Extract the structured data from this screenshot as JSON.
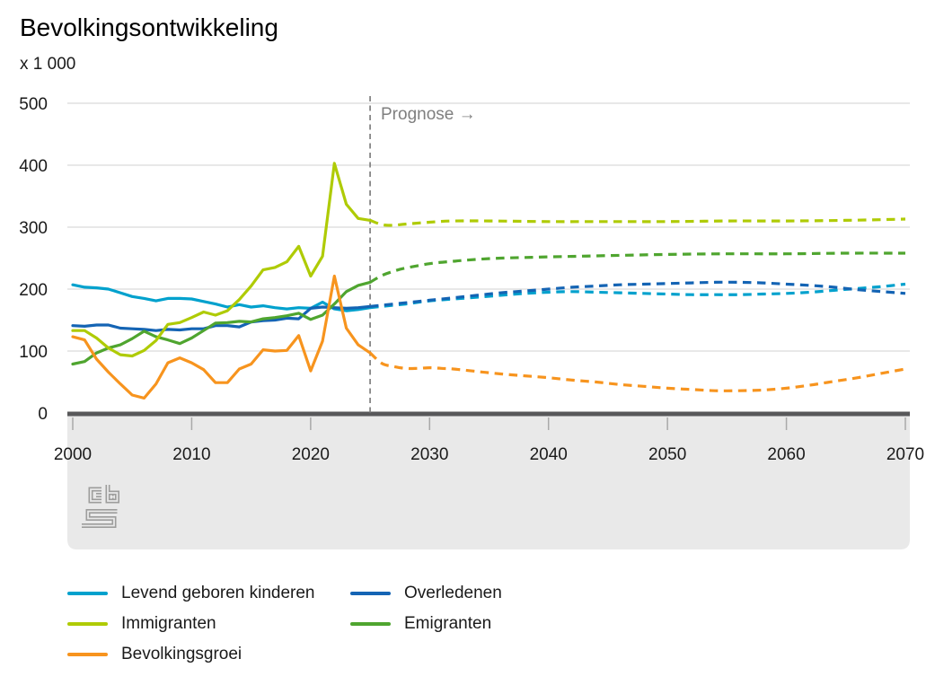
{
  "title": "Bevolkingsontwikkeling",
  "unit": "x 1 000",
  "annotation": {
    "prognose_label": "Prognose →",
    "prognose_year": 2025
  },
  "axes": {
    "y_ticks": [
      0,
      100,
      200,
      300,
      400,
      500
    ],
    "x_ticks": [
      2000,
      2010,
      2020,
      2030,
      2040,
      2050,
      2060,
      2070
    ]
  },
  "logo": {
    "name": "cbs-logo"
  },
  "colors": {
    "births": "#00a1cd",
    "deaths": "#1464b4",
    "immigration": "#afcb05",
    "emigration": "#4fa52f",
    "growth": "#f7941e",
    "grid": "#d9d9d9",
    "axis_bar": "#58585a",
    "band": "#e9e9e9",
    "prognose": "#7f7f7f",
    "logo": "#9d9d9c"
  },
  "legend": {
    "items": [
      {
        "id": "births",
        "label": "Levend geboren kinderen"
      },
      {
        "id": "deaths",
        "label": "Overledenen"
      },
      {
        "id": "immigration",
        "label": "Immigranten"
      },
      {
        "id": "emigration",
        "label": "Emigranten"
      },
      {
        "id": "growth",
        "label": "Bevolkingsgroei"
      }
    ]
  },
  "chart_data": {
    "type": "line",
    "title": "Bevolkingsontwikkeling",
    "ylabel": "x 1 000",
    "x_range": [
      2000,
      2070
    ],
    "y_range": [
      0,
      500
    ],
    "grid": true,
    "forecast_from": 2025,
    "legend_position": "bottom",
    "series": [
      {
        "name": "Levend geboren kinderen",
        "id": "births",
        "color": "#00a1cd",
        "observed": [
          [
            2000,
            207
          ],
          [
            2001,
            203
          ],
          [
            2002,
            202
          ],
          [
            2003,
            200
          ],
          [
            2004,
            194
          ],
          [
            2005,
            188
          ],
          [
            2006,
            185
          ],
          [
            2007,
            181
          ],
          [
            2008,
            185
          ],
          [
            2009,
            185
          ],
          [
            2010,
            184
          ],
          [
            2011,
            180
          ],
          [
            2012,
            176
          ],
          [
            2013,
            171
          ],
          [
            2014,
            175
          ],
          [
            2015,
            171
          ],
          [
            2016,
            173
          ],
          [
            2017,
            170
          ],
          [
            2018,
            168
          ],
          [
            2019,
            170
          ],
          [
            2020,
            169
          ],
          [
            2021,
            179
          ],
          [
            2022,
            168
          ],
          [
            2023,
            165
          ],
          [
            2024,
            167
          ],
          [
            2025,
            170
          ]
        ],
        "forecast": [
          [
            2025,
            170
          ],
          [
            2026,
            172
          ],
          [
            2028,
            176
          ],
          [
            2030,
            181
          ],
          [
            2032,
            184
          ],
          [
            2034,
            187
          ],
          [
            2036,
            190
          ],
          [
            2038,
            193
          ],
          [
            2040,
            195
          ],
          [
            2042,
            196
          ],
          [
            2044,
            195
          ],
          [
            2046,
            194
          ],
          [
            2048,
            193
          ],
          [
            2050,
            192
          ],
          [
            2052,
            191
          ],
          [
            2054,
            191
          ],
          [
            2056,
            191
          ],
          [
            2058,
            192
          ],
          [
            2060,
            193
          ],
          [
            2062,
            195
          ],
          [
            2064,
            198
          ],
          [
            2066,
            201
          ],
          [
            2068,
            204
          ],
          [
            2070,
            208
          ]
        ]
      },
      {
        "name": "Overledenen",
        "id": "deaths",
        "color": "#1464b4",
        "observed": [
          [
            2000,
            141
          ],
          [
            2001,
            140
          ],
          [
            2002,
            142
          ],
          [
            2003,
            142
          ],
          [
            2004,
            137
          ],
          [
            2005,
            136
          ],
          [
            2006,
            135
          ],
          [
            2007,
            133
          ],
          [
            2008,
            135
          ],
          [
            2009,
            134
          ],
          [
            2010,
            136
          ],
          [
            2011,
            136
          ],
          [
            2012,
            141
          ],
          [
            2013,
            141
          ],
          [
            2014,
            139
          ],
          [
            2015,
            147
          ],
          [
            2016,
            149
          ],
          [
            2017,
            150
          ],
          [
            2018,
            153
          ],
          [
            2019,
            152
          ],
          [
            2020,
            169
          ],
          [
            2021,
            171
          ],
          [
            2022,
            170
          ],
          [
            2023,
            169
          ],
          [
            2024,
            170
          ],
          [
            2025,
            172
          ]
        ],
        "forecast": [
          [
            2025,
            172
          ],
          [
            2026,
            174
          ],
          [
            2028,
            178
          ],
          [
            2030,
            182
          ],
          [
            2032,
            186
          ],
          [
            2034,
            190
          ],
          [
            2036,
            194
          ],
          [
            2038,
            197
          ],
          [
            2040,
            200
          ],
          [
            2042,
            203
          ],
          [
            2044,
            205
          ],
          [
            2046,
            207
          ],
          [
            2048,
            208
          ],
          [
            2050,
            209
          ],
          [
            2052,
            210
          ],
          [
            2054,
            211
          ],
          [
            2056,
            211
          ],
          [
            2058,
            210
          ],
          [
            2060,
            208
          ],
          [
            2062,
            206
          ],
          [
            2064,
            203
          ],
          [
            2066,
            199
          ],
          [
            2068,
            196
          ],
          [
            2070,
            193
          ]
        ]
      },
      {
        "name": "Emigranten",
        "id": "emigration",
        "color": "#4fa52f",
        "observed": [
          [
            2000,
            79
          ],
          [
            2001,
            83
          ],
          [
            2002,
            97
          ],
          [
            2003,
            105
          ],
          [
            2004,
            110
          ],
          [
            2005,
            120
          ],
          [
            2006,
            132
          ],
          [
            2007,
            123
          ],
          [
            2008,
            118
          ],
          [
            2009,
            112
          ],
          [
            2010,
            121
          ],
          [
            2011,
            133
          ],
          [
            2012,
            145
          ],
          [
            2013,
            146
          ],
          [
            2014,
            148
          ],
          [
            2015,
            147
          ],
          [
            2016,
            152
          ],
          [
            2017,
            154
          ],
          [
            2018,
            157
          ],
          [
            2019,
            161
          ],
          [
            2020,
            151
          ],
          [
            2021,
            158
          ],
          [
            2022,
            176
          ],
          [
            2023,
            196
          ],
          [
            2024,
            206
          ],
          [
            2025,
            211
          ]
        ],
        "forecast": [
          [
            2025,
            211
          ],
          [
            2026,
            222
          ],
          [
            2027,
            229
          ],
          [
            2028,
            234
          ],
          [
            2030,
            241
          ],
          [
            2032,
            245
          ],
          [
            2034,
            248
          ],
          [
            2036,
            250
          ],
          [
            2038,
            251
          ],
          [
            2040,
            252
          ],
          [
            2045,
            254
          ],
          [
            2050,
            256
          ],
          [
            2055,
            257
          ],
          [
            2060,
            257
          ],
          [
            2065,
            258
          ],
          [
            2070,
            258
          ]
        ]
      },
      {
        "name": "Immigranten",
        "id": "immigration",
        "color": "#afcb05",
        "observed": [
          [
            2000,
            133
          ],
          [
            2001,
            133
          ],
          [
            2002,
            121
          ],
          [
            2003,
            105
          ],
          [
            2004,
            94
          ],
          [
            2005,
            92
          ],
          [
            2006,
            101
          ],
          [
            2007,
            117
          ],
          [
            2008,
            143
          ],
          [
            2009,
            146
          ],
          [
            2010,
            154
          ],
          [
            2011,
            163
          ],
          [
            2012,
            158
          ],
          [
            2013,
            165
          ],
          [
            2014,
            183
          ],
          [
            2015,
            205
          ],
          [
            2016,
            231
          ],
          [
            2017,
            235
          ],
          [
            2018,
            244
          ],
          [
            2019,
            269
          ],
          [
            2020,
            221
          ],
          [
            2021,
            253
          ],
          [
            2022,
            403
          ],
          [
            2023,
            337
          ],
          [
            2024,
            314
          ],
          [
            2025,
            311
          ]
        ],
        "forecast": [
          [
            2025,
            311
          ],
          [
            2026,
            304
          ],
          [
            2027,
            303
          ],
          [
            2028,
            305
          ],
          [
            2030,
            308
          ],
          [
            2032,
            310
          ],
          [
            2035,
            310
          ],
          [
            2040,
            309
          ],
          [
            2045,
            309
          ],
          [
            2050,
            309
          ],
          [
            2055,
            310
          ],
          [
            2060,
            310
          ],
          [
            2065,
            311
          ],
          [
            2070,
            313
          ]
        ]
      },
      {
        "name": "Bevolkingsgroei",
        "id": "growth",
        "color": "#f7941e",
        "observed": [
          [
            2000,
            123
          ],
          [
            2001,
            118
          ],
          [
            2002,
            87
          ],
          [
            2003,
            66
          ],
          [
            2004,
            47
          ],
          [
            2005,
            29
          ],
          [
            2006,
            24
          ],
          [
            2007,
            47
          ],
          [
            2008,
            81
          ],
          [
            2009,
            89
          ],
          [
            2010,
            81
          ],
          [
            2011,
            70
          ],
          [
            2012,
            49
          ],
          [
            2013,
            49
          ],
          [
            2014,
            71
          ],
          [
            2015,
            79
          ],
          [
            2016,
            102
          ],
          [
            2017,
            100
          ],
          [
            2018,
            101
          ],
          [
            2019,
            125
          ],
          [
            2020,
            68
          ],
          [
            2021,
            116
          ],
          [
            2022,
            221
          ],
          [
            2023,
            137
          ],
          [
            2024,
            110
          ],
          [
            2025,
            97
          ]
        ],
        "forecast": [
          [
            2025,
            97
          ],
          [
            2026,
            80
          ],
          [
            2027,
            75
          ],
          [
            2028,
            72
          ],
          [
            2029,
            72
          ],
          [
            2030,
            73
          ],
          [
            2031,
            72
          ],
          [
            2032,
            71
          ],
          [
            2034,
            67
          ],
          [
            2036,
            63
          ],
          [
            2038,
            60
          ],
          [
            2040,
            57
          ],
          [
            2042,
            53
          ],
          [
            2044,
            50
          ],
          [
            2046,
            46
          ],
          [
            2048,
            43
          ],
          [
            2050,
            40
          ],
          [
            2052,
            38
          ],
          [
            2054,
            36
          ],
          [
            2056,
            36
          ],
          [
            2058,
            37
          ],
          [
            2060,
            40
          ],
          [
            2062,
            45
          ],
          [
            2064,
            51
          ],
          [
            2066,
            57
          ],
          [
            2068,
            64
          ],
          [
            2070,
            71
          ]
        ]
      }
    ]
  }
}
